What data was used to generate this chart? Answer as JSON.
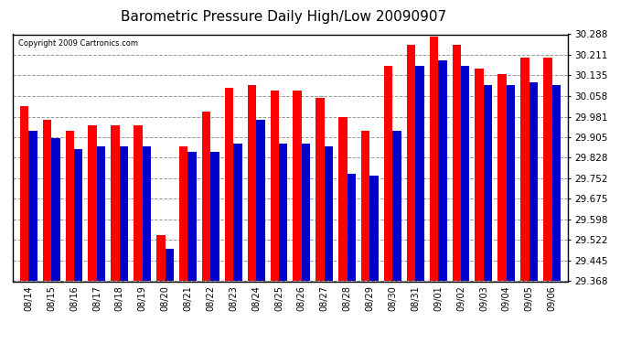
{
  "title": "Barometric Pressure Daily High/Low 20090907",
  "copyright": "Copyright 2009 Cartronics.com",
  "ylim": [
    29.368,
    30.288
  ],
  "yticks": [
    29.368,
    29.445,
    29.522,
    29.598,
    29.675,
    29.752,
    29.828,
    29.905,
    29.981,
    30.058,
    30.135,
    30.211,
    30.288
  ],
  "categories": [
    "08/14",
    "08/15",
    "08/16",
    "08/17",
    "08/18",
    "08/19",
    "08/20",
    "08/21",
    "08/22",
    "08/23",
    "08/24",
    "08/25",
    "08/26",
    "08/27",
    "08/28",
    "08/29",
    "08/30",
    "08/31",
    "09/01",
    "09/02",
    "09/03",
    "09/04",
    "09/05",
    "09/06"
  ],
  "high_values": [
    30.02,
    29.97,
    29.93,
    29.95,
    29.95,
    29.95,
    29.54,
    29.87,
    30.0,
    30.09,
    30.1,
    30.08,
    30.08,
    30.05,
    29.98,
    29.93,
    30.17,
    30.25,
    30.28,
    30.25,
    30.16,
    30.14,
    30.2,
    30.2
  ],
  "low_values": [
    29.93,
    29.9,
    29.86,
    29.87,
    29.87,
    29.87,
    29.49,
    29.85,
    29.85,
    29.88,
    29.97,
    29.88,
    29.88,
    29.87,
    29.77,
    29.76,
    29.93,
    30.17,
    30.19,
    30.17,
    30.1,
    30.1,
    30.11,
    30.1
  ],
  "high_color": "#ff0000",
  "low_color": "#0000cc",
  "bg_color": "#ffffff",
  "plot_bg_color": "#ffffff",
  "grid_color": "#999999",
  "title_fontsize": 11,
  "bar_width": 0.38,
  "figwidth": 6.9,
  "figheight": 3.75,
  "dpi": 100
}
